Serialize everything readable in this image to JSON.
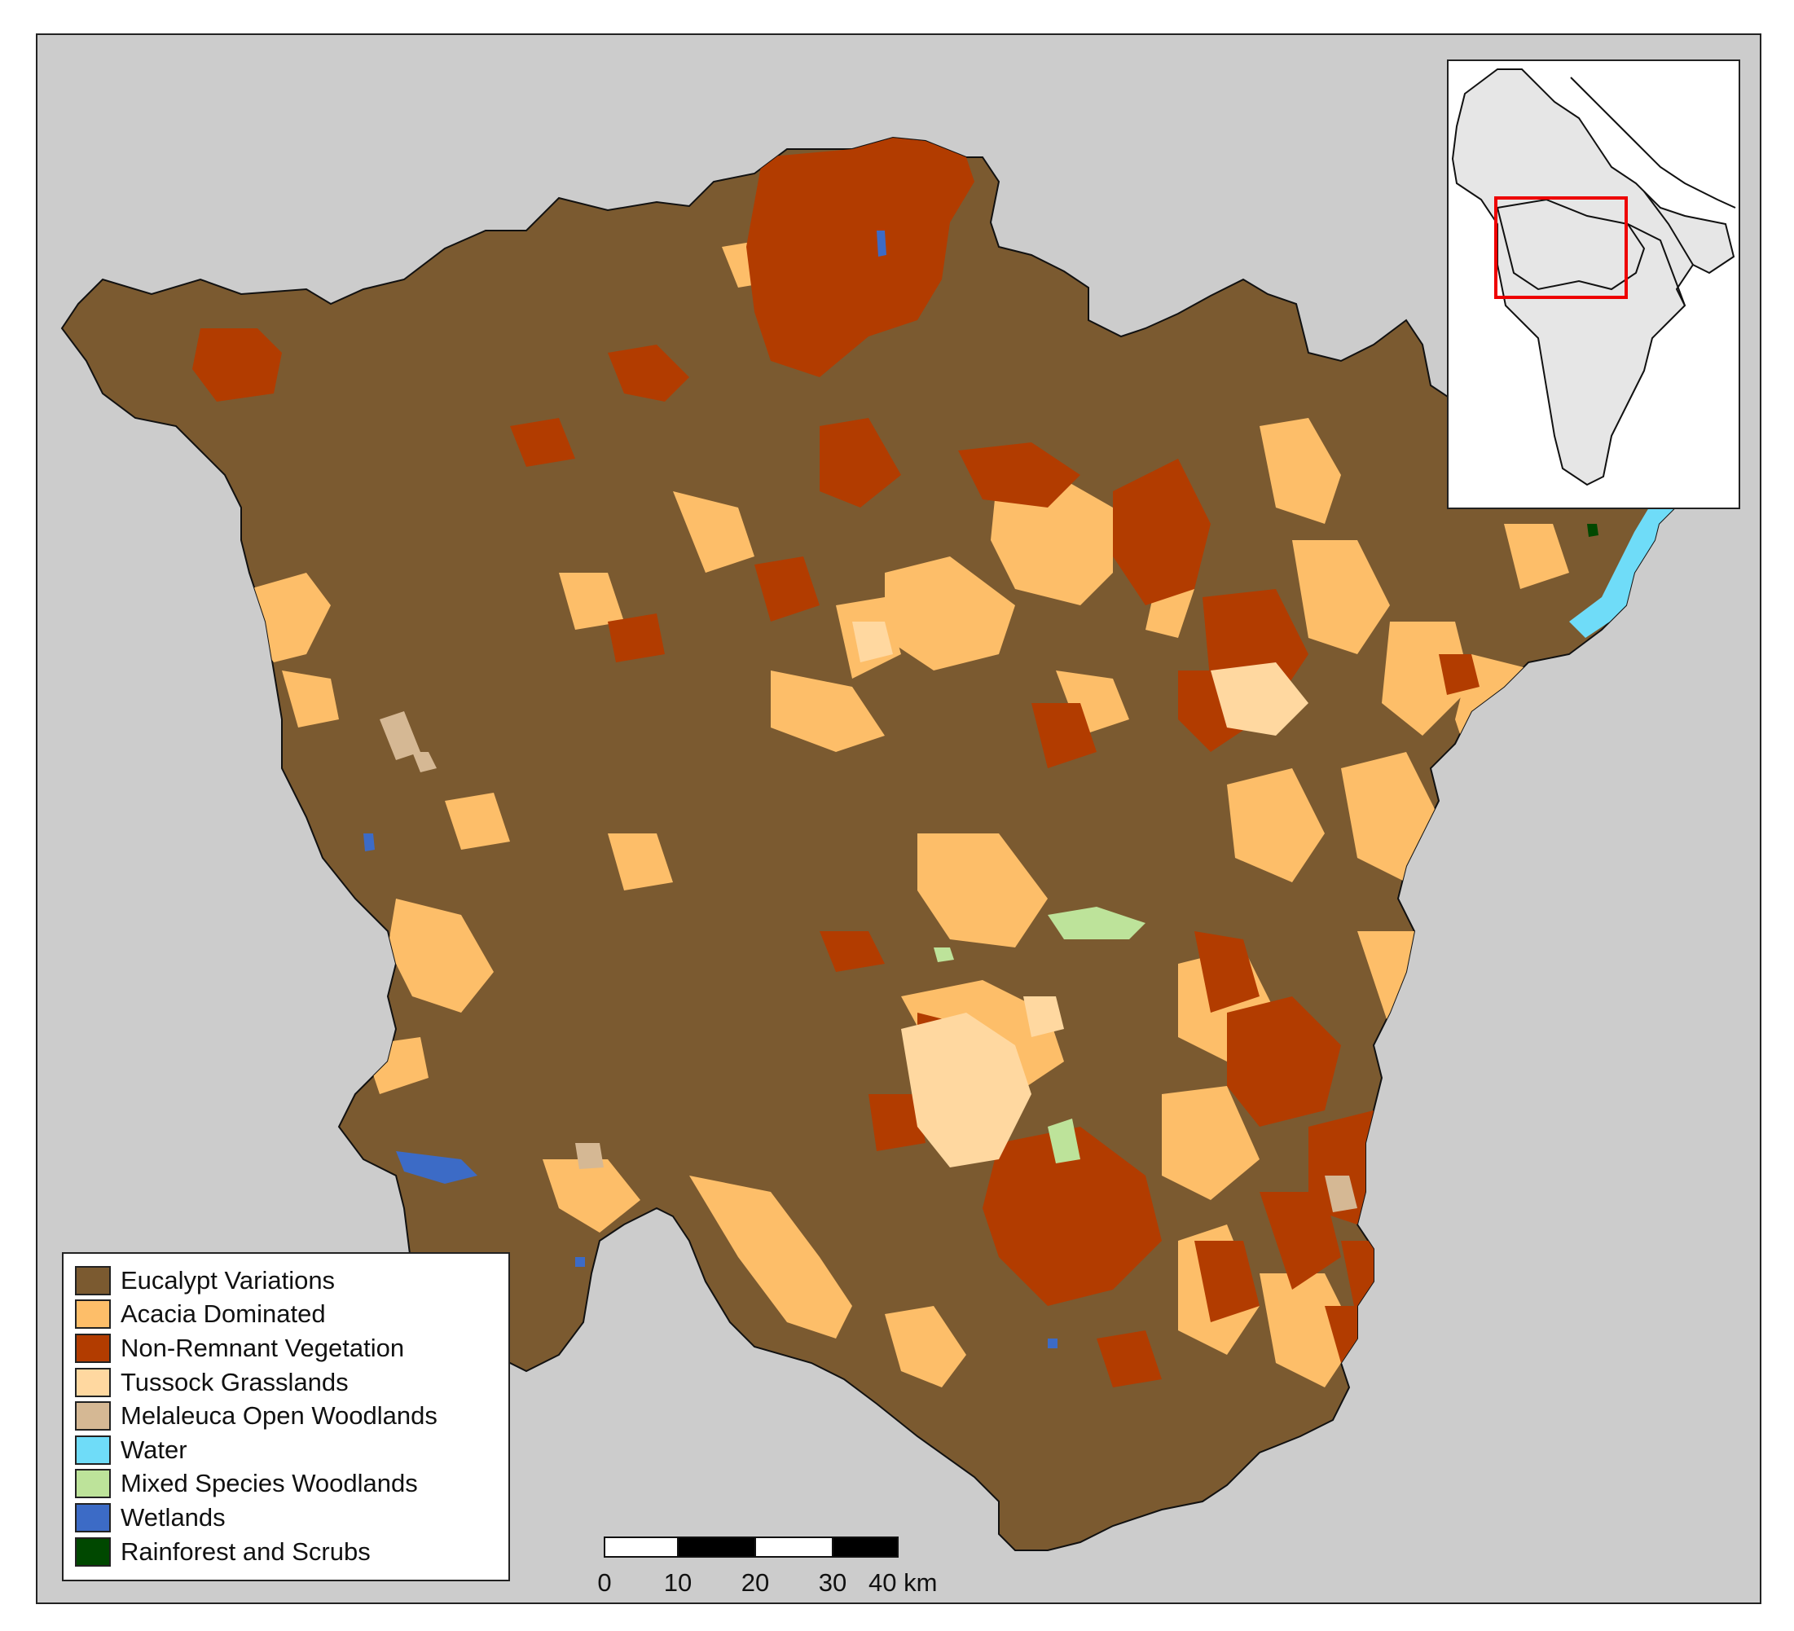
{
  "map": {
    "legend": {
      "items": [
        {
          "label": "Eucalypt Variations",
          "color": "#7b5a30"
        },
        {
          "label": "Acacia Dominated",
          "color": "#fdbe69"
        },
        {
          "label": "Non-Remnant Vegetation",
          "color": "#b23c00"
        },
        {
          "label": "Tussock Grasslands",
          "color": "#ffd8a0"
        },
        {
          "label": "Melaleuca Open Woodlands",
          "color": "#d5b894"
        },
        {
          "label": "Water",
          "color": "#6fdcf8"
        },
        {
          "label": "Mixed Species Woodlands",
          "color": "#bde39a"
        },
        {
          "label": "Wetlands",
          "color": "#3c6bc6"
        },
        {
          "label": "Rainforest and Scrubs",
          "color": "#004800"
        }
      ]
    },
    "scale_bar": {
      "tick_labels": [
        "0",
        "10",
        "20",
        "30",
        "40 km"
      ],
      "segments": 4
    },
    "inset": {
      "highlight_color": "#ee0000",
      "region_fill": "#e6e6e6"
    },
    "background_color": "#cccccc"
  }
}
